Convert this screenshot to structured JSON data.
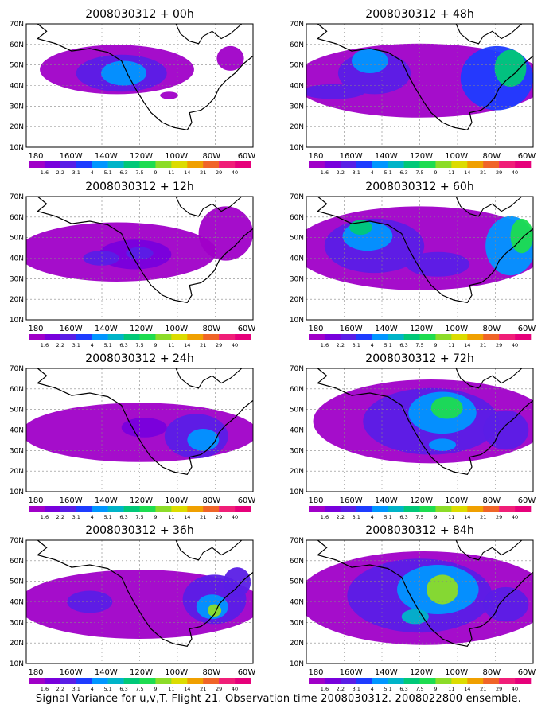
{
  "figure": {
    "caption": "Signal Variance for u,v,T. Flight 21. Observation time 2008030312. 2008022800 ensemble."
  },
  "axes": {
    "lat_labels": [
      "70N",
      "60N",
      "50N",
      "40N",
      "30N",
      "20N",
      "10N"
    ],
    "lon_labels": [
      "180",
      "160W",
      "140W",
      "120W",
      "100W",
      "80W",
      "60W"
    ]
  },
  "colorbar": {
    "labels": [
      "1.6",
      "2.2",
      "3.1",
      "4",
      "5.1",
      "6.3",
      "7.5",
      "9",
      "11",
      "14",
      "21",
      "29",
      "40"
    ],
    "colors": [
      "#a000c8",
      "#7800dc",
      "#5a1ee6",
      "#1e3cff",
      "#0096ff",
      "#00b4c8",
      "#00c878",
      "#1edc50",
      "#8cdc28",
      "#dcdc00",
      "#f0a000",
      "#f06428",
      "#f01e78",
      "#e6007a"
    ]
  },
  "panels": [
    {
      "title": "2008030312 + 00h"
    },
    {
      "title": "2008030312 + 48h"
    },
    {
      "title": "2008030312 + 12h"
    },
    {
      "title": "2008030312 + 60h"
    },
    {
      "title": "2008030312 + 24h"
    },
    {
      "title": "2008030312 + 72h"
    },
    {
      "title": "2008030312 + 36h"
    },
    {
      "title": "2008030312 + 84h"
    }
  ]
}
